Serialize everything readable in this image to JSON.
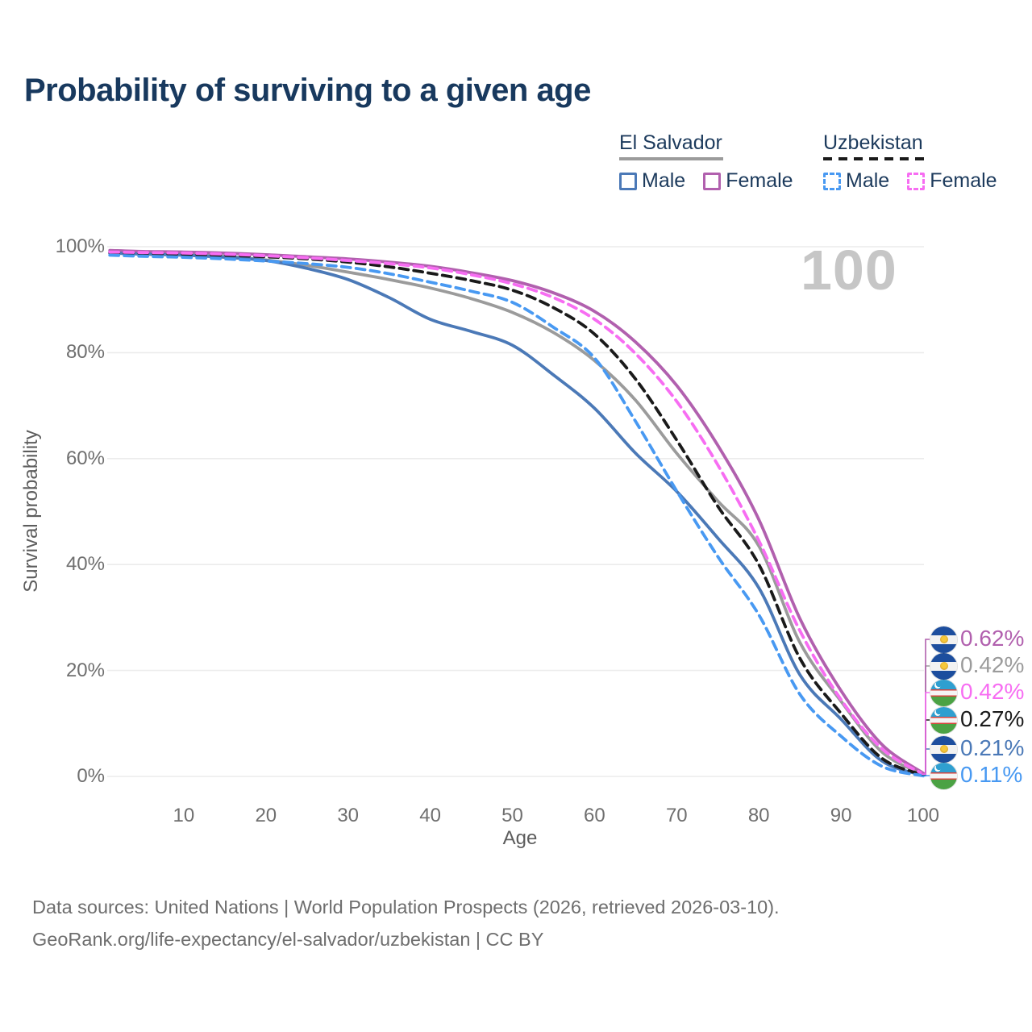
{
  "title": "Probability of surviving to a given age",
  "watermark": "100",
  "footer": {
    "line1": "Data sources: United Nations | World Population Prospects (2026, retrieved 2026-03-10).",
    "line2": "GeoRank.org/life-expectancy/el-salvador/uzbekistan | CC BY"
  },
  "legend": {
    "groups": [
      {
        "id": "es",
        "title": "El Salvador",
        "underline_style": "solid",
        "underline_color": "#9b9b9b",
        "items": [
          {
            "label": "Male",
            "series": "es_male",
            "style": "solid"
          },
          {
            "label": "Female",
            "series": "es_female",
            "style": "solid"
          }
        ]
      },
      {
        "id": "uz",
        "title": "Uzbekistan",
        "underline_style": "dashed",
        "underline_color": "#1a1a1a",
        "items": [
          {
            "label": "Male",
            "series": "uz_male",
            "style": "dashed"
          },
          {
            "label": "Female",
            "series": "uz_female",
            "style": "dashed"
          }
        ]
      }
    ]
  },
  "colors": {
    "title_navy": "#18395e",
    "axis_text": "#6f6f6f",
    "grid": "#ececec",
    "watermark": "#c6c6c6"
  },
  "chart_data": {
    "type": "line",
    "title": "Probability of surviving to a given age",
    "xlabel": "Age",
    "ylabel": "Survival probability",
    "xlim": [
      0,
      100
    ],
    "ylim": [
      0,
      100
    ],
    "grid": "horizontal-only",
    "x_ticks": [
      10,
      20,
      30,
      40,
      50,
      60,
      70,
      80,
      90,
      100
    ],
    "y_ticks": [
      {
        "value": 0,
        "label": "0%"
      },
      {
        "value": 20,
        "label": "20%"
      },
      {
        "value": 40,
        "label": "40%"
      },
      {
        "value": 60,
        "label": "60%"
      },
      {
        "value": 80,
        "label": "80%"
      },
      {
        "value": 100,
        "label": "100%"
      }
    ],
    "x": [
      1,
      5,
      10,
      15,
      20,
      25,
      30,
      35,
      40,
      45,
      50,
      55,
      60,
      65,
      70,
      75,
      80,
      85,
      90,
      95,
      100
    ],
    "series": [
      {
        "id": "es_all",
        "name": "El Salvador (both sexes)",
        "country": "El Salvador",
        "flag": "sv",
        "style": "solid",
        "color": "#9b9b9b",
        "slot": 1,
        "end_label": "0.42%",
        "values": [
          99.0,
          98.8,
          98.6,
          98.2,
          97.5,
          96.5,
          95.2,
          93.8,
          92.2,
          90.2,
          87.6,
          83.8,
          78.5,
          71.0,
          61.0,
          52.0,
          43.5,
          25.3,
          14.2,
          4.6,
          0.42
        ]
      },
      {
        "id": "es_female",
        "name": "El Salvador Female",
        "country": "El Salvador",
        "flag": "sv",
        "style": "solid",
        "color": "#b160ae",
        "slot": 0,
        "end_label": "0.62%",
        "values": [
          99.3,
          99.1,
          99.0,
          98.8,
          98.5,
          98.1,
          97.7,
          97.1,
          96.3,
          95.1,
          93.6,
          91.3,
          87.8,
          82.0,
          73.8,
          62.5,
          48.5,
          29.8,
          16.2,
          6.0,
          0.62
        ]
      },
      {
        "id": "es_male",
        "name": "El Salvador Male",
        "country": "El Salvador",
        "flag": "sv",
        "style": "solid",
        "color": "#4b79b7",
        "slot": 4,
        "end_label": "0.21%",
        "values": [
          98.8,
          98.6,
          98.4,
          98.0,
          97.4,
          95.9,
          93.8,
          90.4,
          86.3,
          84.0,
          81.4,
          75.8,
          69.5,
          61.0,
          53.8,
          45.0,
          35.6,
          19.2,
          10.8,
          2.9,
          0.21
        ]
      },
      {
        "id": "uz_all",
        "name": "Uzbekistan (both sexes)",
        "country": "Uzbekistan",
        "flag": "uz",
        "style": "dashed",
        "color": "#1a1a1a",
        "slot": 3,
        "end_label": "0.27%",
        "values": [
          98.9,
          98.8,
          98.6,
          98.4,
          98.1,
          97.7,
          97.1,
          96.2,
          95.0,
          93.6,
          91.8,
          88.5,
          83.5,
          75.0,
          63.5,
          51.0,
          40.0,
          22.3,
          11.9,
          3.4,
          0.27
        ]
      },
      {
        "id": "uz_female",
        "name": "Uzbekistan Female",
        "country": "Uzbekistan",
        "flag": "uz",
        "style": "dashed",
        "color": "#f76df2",
        "slot": 2,
        "end_label": "0.42%",
        "values": [
          99.0,
          98.9,
          98.8,
          98.6,
          98.3,
          97.9,
          97.4,
          96.8,
          96.0,
          94.7,
          93.0,
          90.4,
          86.3,
          79.8,
          70.8,
          58.8,
          44.5,
          27.5,
          14.5,
          5.2,
          0.42
        ]
      },
      {
        "id": "uz_male",
        "name": "Uzbekistan Male",
        "country": "Uzbekistan",
        "flag": "uz",
        "style": "dashed",
        "color": "#4899f2",
        "slot": 5,
        "end_label": "0.11%",
        "values": [
          98.4,
          98.2,
          98.0,
          97.7,
          97.3,
          96.8,
          96.1,
          94.9,
          93.3,
          91.6,
          89.5,
          84.8,
          79.0,
          67.0,
          53.9,
          41.5,
          30.5,
          15.5,
          7.6,
          1.9,
          0.11
        ]
      }
    ],
    "legend_position": "top-right",
    "end_age_marker": "100"
  }
}
